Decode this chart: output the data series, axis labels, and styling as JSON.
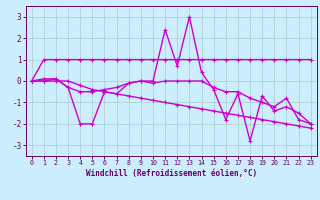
{
  "xlabel": "Windchill (Refroidissement éolien,°C)",
  "x": [
    0,
    1,
    2,
    3,
    4,
    5,
    6,
    7,
    8,
    9,
    10,
    11,
    12,
    13,
    14,
    15,
    16,
    17,
    18,
    19,
    20,
    21,
    22,
    23
  ],
  "line1": [
    0.0,
    1.0,
    1.0,
    1.0,
    1.0,
    1.0,
    1.0,
    1.0,
    1.0,
    1.0,
    1.0,
    1.0,
    1.0,
    1.0,
    1.0,
    1.0,
    1.0,
    1.0,
    1.0,
    1.0,
    1.0,
    1.0,
    1.0,
    1.0
  ],
  "line2": [
    0.0,
    0.1,
    0.1,
    -0.3,
    -2.0,
    -2.0,
    -0.5,
    -0.6,
    -0.1,
    0.0,
    0.0,
    2.4,
    0.7,
    3.0,
    0.4,
    -0.4,
    -1.8,
    -0.6,
    -2.8,
    -0.7,
    -1.4,
    -1.2,
    -1.5,
    -2.0
  ],
  "line3": [
    0.0,
    0.0,
    0.0,
    0.0,
    -0.2,
    -0.4,
    -0.5,
    -0.6,
    -0.7,
    -0.8,
    -0.9,
    -1.0,
    -1.1,
    -1.2,
    -1.3,
    -1.4,
    -1.5,
    -1.6,
    -1.7,
    -1.8,
    -1.9,
    -2.0,
    -2.1,
    -2.2
  ],
  "line4": [
    0.0,
    0.0,
    0.1,
    -0.3,
    -0.5,
    -0.5,
    -0.4,
    -0.3,
    -0.1,
    0.0,
    -0.1,
    0.0,
    0.0,
    0.0,
    0.0,
    -0.3,
    -0.5,
    -0.5,
    -0.8,
    -1.0,
    -1.2,
    -0.8,
    -1.8,
    -2.0
  ],
  "ylim": [
    -3.5,
    3.5
  ],
  "yticks": [
    -3,
    -2,
    -1,
    0,
    1,
    2,
    3
  ],
  "xticks": [
    0,
    1,
    2,
    3,
    4,
    5,
    6,
    7,
    8,
    9,
    10,
    11,
    12,
    13,
    14,
    15,
    16,
    17,
    18,
    19,
    20,
    21,
    22,
    23
  ],
  "line_color": "#cc00cc",
  "bg_color": "#cceeff",
  "grid_color": "#aacccc",
  "axis_color": "#660066",
  "tick_color": "#660066",
  "xlabel_color": "#660066"
}
